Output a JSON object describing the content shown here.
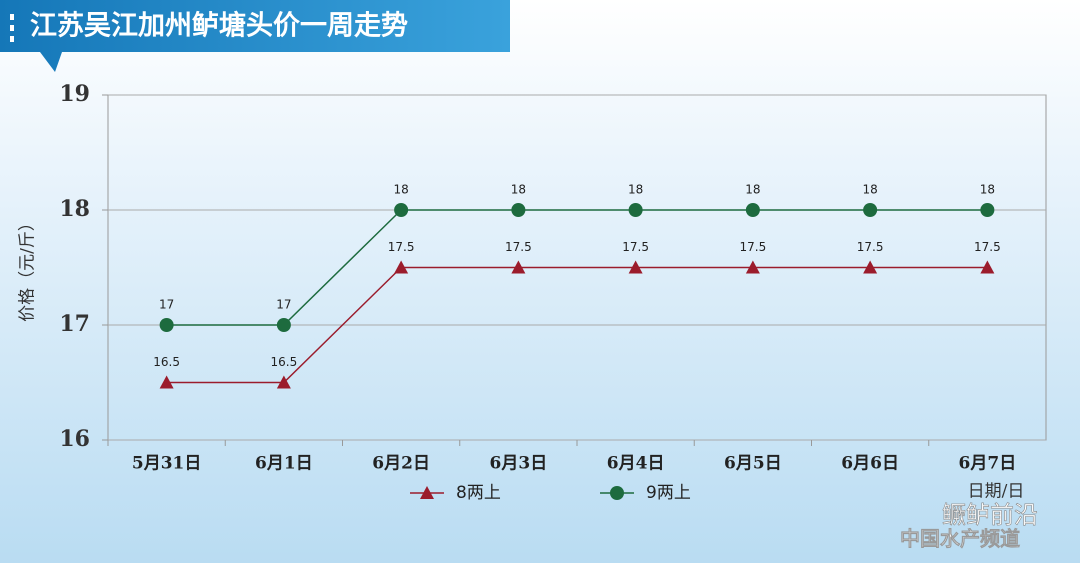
{
  "chart_data": {
    "type": "line",
    "title": "江苏吴江加州鲈塘头价一周走势",
    "y_label": "价格（元/斤）",
    "x_label": "日期/日",
    "categories": [
      "5月31日",
      "6月1日",
      "6月2日",
      "6月3日",
      "6月4日",
      "6月5日",
      "6月6日",
      "6月7日"
    ],
    "series": [
      {
        "name": "8两上",
        "color": "#9b1c2c",
        "marker": "triangle",
        "values": [
          16.5,
          16.5,
          17.5,
          17.5,
          17.5,
          17.5,
          17.5,
          17.5
        ]
      },
      {
        "name": "9两上",
        "color": "#1d6b3e",
        "marker": "circle",
        "values": [
          17,
          17,
          18,
          18,
          18,
          18,
          18,
          18
        ]
      }
    ],
    "ylim": [
      16,
      19
    ],
    "yticks": [
      16,
      17,
      18,
      19
    ],
    "grid": true,
    "watermark": [
      "鳜鲈前沿",
      "中国水产频道"
    ]
  }
}
